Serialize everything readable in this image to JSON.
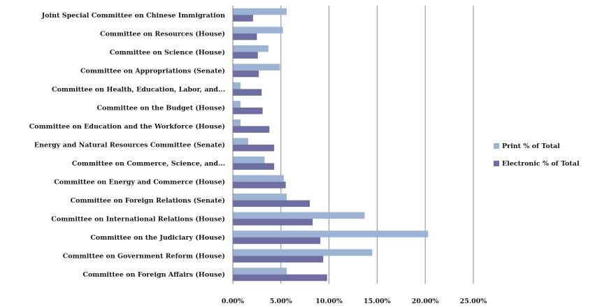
{
  "chart_data": {
    "type": "bar",
    "orientation": "horizontal",
    "categories": [
      "Joint Special Committee on Chinese Immigration",
      "Committee on Resources (House)",
      "Committee on Science (House)",
      "Committee on Appropriations (Senate)",
      "Committee on Health, Education, Labor, and...",
      "Committee on the Budget (House)",
      "Committee on Education and the Workforce (House)",
      "Energy and Natural Resources Committee (Senate)",
      "Committee on Commerce, Science, and...",
      "Committee on Energy and Commerce (House)",
      "Committee on Foreign Relations (Senate)",
      "Committee on International Relations (House)",
      "Committee on the Judiciary (House)",
      "Committee on Government Reform (House)",
      "Committee on Foreign Affairs (House)"
    ],
    "series": [
      {
        "name": "Print % of Total",
        "color": "#9db3d4",
        "values": [
          5.6,
          5.2,
          3.7,
          4.9,
          0.8,
          0.8,
          0.8,
          1.6,
          3.3,
          5.3,
          5.6,
          13.7,
          20.3,
          14.5,
          5.6
        ]
      },
      {
        "name": "Electronic % of Total",
        "color": "#6e6ea3",
        "values": [
          2.1,
          2.5,
          2.6,
          2.7,
          3.0,
          3.1,
          3.8,
          4.3,
          4.3,
          5.5,
          8.0,
          8.3,
          9.1,
          9.4,
          9.8
        ]
      }
    ],
    "x_ticks": [
      "0.00%",
      "5.00%",
      "10.00%",
      "15.00%",
      "20.00%",
      "25.00%"
    ],
    "xlim": [
      0,
      25
    ],
    "grid": true,
    "legend_position": "right"
  }
}
